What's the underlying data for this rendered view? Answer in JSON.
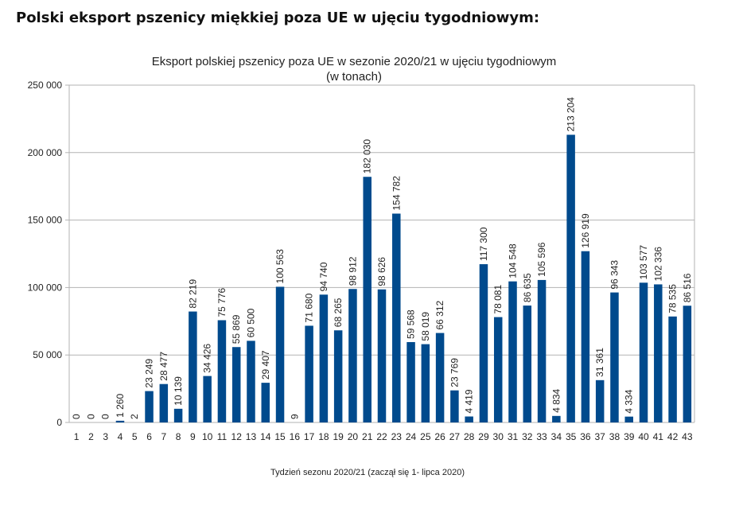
{
  "page": {
    "heading": "Polski eksport pszenicy miękkiej poza UE w ujęciu tygodniowym:"
  },
  "chart_data": {
    "type": "bar",
    "title": "Eksport polskiej pszenicy poza UE w sezonie 2020/21 w ujęciu tygodniowym",
    "subtitle": "(w tonach)",
    "xlabel": "Tydzień sezonu 2020/21 (zaczął się 1- lipca 2020)",
    "ylabel": "",
    "ylim": [
      0,
      250000
    ],
    "yticks": [
      0,
      50000,
      100000,
      150000,
      200000,
      250000
    ],
    "ytick_labels": [
      "0",
      "50 000",
      "100 000",
      "150 000",
      "200 000",
      "250 000"
    ],
    "grid": true,
    "legend": "none",
    "bar_color": "#004a8d",
    "categories": [
      "1",
      "2",
      "3",
      "4",
      "5",
      "6",
      "7",
      "8",
      "9",
      "10",
      "11",
      "12",
      "13",
      "14",
      "15",
      "16",
      "17",
      "18",
      "19",
      "20",
      "21",
      "22",
      "23",
      "24",
      "25",
      "26",
      "27",
      "28",
      "29",
      "30",
      "31",
      "32",
      "33",
      "34",
      "35",
      "36",
      "37",
      "38",
      "39",
      "40",
      "41",
      "42",
      "43"
    ],
    "values": [
      0,
      0,
      0,
      1260,
      2,
      23249,
      28477,
      10139,
      82219,
      34426,
      75776,
      55869,
      60500,
      29407,
      100563,
      9,
      71680,
      94740,
      68265,
      98912,
      182030,
      98626,
      154782,
      59568,
      58019,
      66312,
      23769,
      4419,
      117300,
      78081,
      104548,
      86635,
      105596,
      4834,
      213204,
      126919,
      31361,
      96343,
      4334,
      103577,
      102336,
      78535,
      86516
    ],
    "value_labels": [
      "0",
      "0",
      "0",
      "1 260",
      "2",
      "23 249",
      "28 477",
      "10 139",
      "82 219",
      "34 426",
      "75 776",
      "55 869",
      "60 500",
      "29 407",
      "100 563",
      "9",
      "71 680",
      "94 740",
      "68 265",
      "98 912",
      "182 030",
      "98 626",
      "154 782",
      "59 568",
      "58 019",
      "66 312",
      "23 769",
      "4 419",
      "117 300",
      "78 081",
      "104 548",
      "86 635",
      "105 596",
      "4 834",
      "213 204",
      "126 919",
      "31 361",
      "96 343",
      "4 334",
      "103 577",
      "102 336",
      "78 535",
      "86 516"
    ]
  }
}
